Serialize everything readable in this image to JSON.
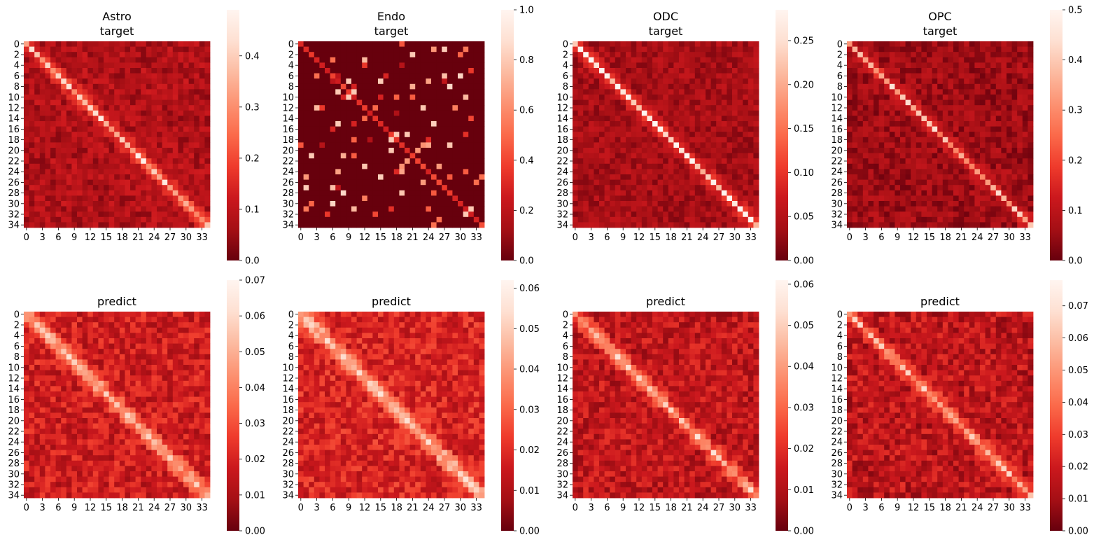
{
  "chart_data": [
    {
      "type": "heatmap",
      "title": "Astro\ntarget",
      "n": 35,
      "xticks": [
        "0",
        "3",
        "6",
        "9",
        "12",
        "15",
        "18",
        "21",
        "24",
        "27",
        "30",
        "33"
      ],
      "yticks": [
        "0",
        "2",
        "4",
        "6",
        "8",
        "10",
        "12",
        "14",
        "16",
        "18",
        "20",
        "22",
        "24",
        "26",
        "28",
        "30",
        "32",
        "34"
      ],
      "colorbar": {
        "min": 0,
        "max": 0.49,
        "ticks": [
          "0.0",
          "0.1",
          "0.2",
          "0.3",
          "0.4"
        ],
        "tick_values": [
          0,
          0.1,
          0.2,
          0.3,
          0.4
        ]
      },
      "colormap": "Reds_r",
      "description": "35x35 matrix, bright diagonal, off-diagonal ~0.05-0.15",
      "diag_level": 0.38,
      "offdiag_level": 0.08,
      "noise": 0.05,
      "seed": 11,
      "sparse": false
    },
    {
      "type": "heatmap",
      "title": "Endo\ntarget",
      "n": 35,
      "xticks": [
        "0",
        "3",
        "6",
        "9",
        "12",
        "15",
        "18",
        "21",
        "24",
        "27",
        "30",
        "33"
      ],
      "yticks": [
        "0",
        "2",
        "4",
        "6",
        "8",
        "10",
        "12",
        "14",
        "16",
        "18",
        "20",
        "22",
        "24",
        "26",
        "28",
        "30",
        "32",
        "34"
      ],
      "colorbar": {
        "min": 0,
        "max": 1.0,
        "ticks": [
          "0.0",
          "0.2",
          "0.4",
          "0.6",
          "0.8",
          "1.0"
        ],
        "tick_values": [
          0,
          0.2,
          0.4,
          0.6,
          0.8,
          1.0
        ]
      },
      "colormap": "Reds_r",
      "description": "sparse 35x35 matrix, mostly 0 with scattered values",
      "diag_level": 0.35,
      "offdiag_level": 0.0,
      "noise": 0.0,
      "seed": 23,
      "sparse": true
    },
    {
      "type": "heatmap",
      "title": "ODC\ntarget",
      "n": 35,
      "xticks": [
        "0",
        "3",
        "6",
        "9",
        "12",
        "15",
        "18",
        "21",
        "24",
        "27",
        "30",
        "33"
      ],
      "yticks": [
        "0",
        "2",
        "4",
        "6",
        "8",
        "10",
        "12",
        "14",
        "16",
        "18",
        "20",
        "22",
        "24",
        "26",
        "28",
        "30",
        "32",
        "34"
      ],
      "colorbar": {
        "min": 0,
        "max": 0.285,
        "ticks": [
          "0.00",
          "0.05",
          "0.10",
          "0.15",
          "0.20",
          "0.25"
        ],
        "tick_values": [
          0,
          0.05,
          0.1,
          0.15,
          0.2,
          0.25
        ]
      },
      "colormap": "Reds_r",
      "description": "35x35 matrix, strong diagonal band",
      "diag_level": 0.26,
      "offdiag_level": 0.04,
      "noise": 0.025,
      "seed": 37,
      "sparse": false
    },
    {
      "type": "heatmap",
      "title": "OPC\ntarget",
      "n": 35,
      "xticks": [
        "0",
        "3",
        "6",
        "9",
        "12",
        "15",
        "18",
        "21",
        "24",
        "27",
        "30",
        "33"
      ],
      "yticks": [
        "0",
        "2",
        "4",
        "6",
        "8",
        "10",
        "12",
        "14",
        "16",
        "18",
        "20",
        "22",
        "24",
        "26",
        "28",
        "30",
        "32",
        "34"
      ],
      "colorbar": {
        "min": 0,
        "max": 0.5,
        "ticks": [
          "0.0",
          "0.1",
          "0.2",
          "0.3",
          "0.4",
          "0.5"
        ],
        "tick_values": [
          0,
          0.1,
          0.2,
          0.3,
          0.4,
          0.5
        ]
      },
      "colormap": "Reds_r",
      "description": "35x35 matrix, bright diagonal",
      "diag_level": 0.36,
      "offdiag_level": 0.06,
      "noise": 0.05,
      "seed": 53,
      "sparse": false
    },
    {
      "type": "heatmap",
      "title": "predict",
      "n": 35,
      "xticks": [
        "0",
        "3",
        "6",
        "9",
        "12",
        "15",
        "18",
        "21",
        "24",
        "27",
        "30",
        "33"
      ],
      "yticks": [
        "0",
        "2",
        "4",
        "6",
        "8",
        "10",
        "12",
        "14",
        "16",
        "18",
        "20",
        "22",
        "24",
        "26",
        "28",
        "30",
        "32",
        "34"
      ],
      "colorbar": {
        "min": 0,
        "max": 0.07,
        "ticks": [
          "0.00",
          "0.01",
          "0.02",
          "0.03",
          "0.04",
          "0.05",
          "0.06",
          "0.07"
        ],
        "tick_values": [
          0,
          0.01,
          0.02,
          0.03,
          0.04,
          0.05,
          0.06,
          0.07
        ]
      },
      "colormap": "Reds_r",
      "description": "35x35 predicted matrix, diagonal ~0.05",
      "diag_level": 0.05,
      "offdiag_level": 0.018,
      "noise": 0.01,
      "seed": 71,
      "sparse": false
    },
    {
      "type": "heatmap",
      "title": "predict",
      "n": 35,
      "xticks": [
        "0",
        "3",
        "6",
        "9",
        "12",
        "15",
        "18",
        "21",
        "24",
        "27",
        "30",
        "33"
      ],
      "yticks": [
        "0",
        "2",
        "4",
        "6",
        "8",
        "10",
        "12",
        "14",
        "16",
        "18",
        "20",
        "22",
        "24",
        "26",
        "28",
        "30",
        "32",
        "34"
      ],
      "colorbar": {
        "min": 0,
        "max": 0.062,
        "ticks": [
          "0.00",
          "0.01",
          "0.02",
          "0.03",
          "0.04",
          "0.05",
          "0.06"
        ],
        "tick_values": [
          0,
          0.01,
          0.02,
          0.03,
          0.04,
          0.05,
          0.06
        ]
      },
      "colormap": "Reds_r",
      "description": "35x35 predicted matrix, diagonal ~0.045",
      "diag_level": 0.045,
      "offdiag_level": 0.018,
      "noise": 0.009,
      "seed": 89,
      "sparse": false
    },
    {
      "type": "heatmap",
      "title": "predict",
      "n": 35,
      "xticks": [
        "0",
        "3",
        "6",
        "9",
        "12",
        "15",
        "18",
        "21",
        "24",
        "27",
        "30",
        "33"
      ],
      "yticks": [
        "0",
        "2",
        "4",
        "6",
        "8",
        "10",
        "12",
        "14",
        "16",
        "18",
        "20",
        "22",
        "24",
        "26",
        "28",
        "30",
        "32",
        "34"
      ],
      "colorbar": {
        "min": 0,
        "max": 0.061,
        "ticks": [
          "0.00",
          "0.01",
          "0.02",
          "0.03",
          "0.04",
          "0.05",
          "0.06"
        ],
        "tick_values": [
          0,
          0.01,
          0.02,
          0.03,
          0.04,
          0.05,
          0.06
        ]
      },
      "colormap": "Reds_r",
      "description": "35x35 predicted matrix, diagonal ~0.045",
      "diag_level": 0.044,
      "offdiag_level": 0.013,
      "noise": 0.008,
      "seed": 97,
      "sparse": false
    },
    {
      "type": "heatmap",
      "title": "predict",
      "n": 35,
      "xticks": [
        "0",
        "3",
        "6",
        "9",
        "12",
        "15",
        "18",
        "21",
        "24",
        "27",
        "30",
        "33"
      ],
      "yticks": [
        "0",
        "2",
        "4",
        "6",
        "8",
        "10",
        "12",
        "14",
        "16",
        "18",
        "20",
        "22",
        "24",
        "26",
        "28",
        "30",
        "32",
        "34"
      ],
      "colorbar": {
        "min": 0,
        "max": 0.078,
        "ticks": [
          "0.00",
          "0.01",
          "0.02",
          "0.03",
          "0.04",
          "0.05",
          "0.06",
          "0.07"
        ],
        "tick_values": [
          0,
          0.01,
          0.02,
          0.03,
          0.04,
          0.05,
          0.06,
          0.07
        ]
      },
      "colormap": "Reds_r",
      "description": "35x35 predicted matrix, diagonal ~0.055",
      "diag_level": 0.055,
      "offdiag_level": 0.016,
      "noise": 0.011,
      "seed": 113,
      "sparse": false
    }
  ]
}
